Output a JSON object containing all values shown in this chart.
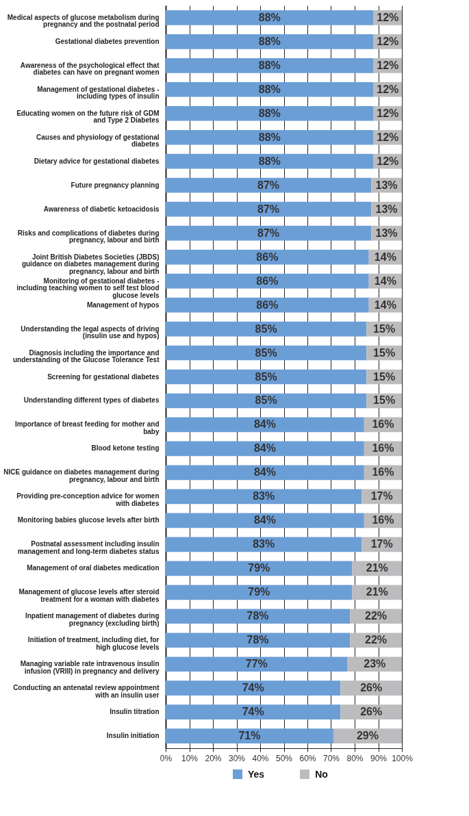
{
  "chart_data": {
    "type": "bar",
    "orientation": "horizontal",
    "stacked": true,
    "categories": [
      "Medical aspects of glucose metabolism during pregnancy and the postnatal period",
      "Gestational diabetes prevention",
      "Awareness of the psychological effect that diabetes can have on pregnant women",
      "Management of gestational diabetes - including types of insulin",
      "Educating women on the future risk of GDM and Type 2 Diabetes",
      "Causes and physiology of gestational diabetes",
      "Dietary advice for gestational diabetes",
      "Future pregnancy planning",
      "Awareness of diabetic ketoacidosis",
      "Risks and complications of diabetes during pregnancy, labour and birth",
      "Joint British Diabetes Societies (JBDS) guidance on diabetes management during pregnancy, labour and birth",
      "Monitoring of gestational diabetes - including teaching women to self test blood glucose levels",
      "Management of hypos",
      "Understanding the legal aspects of driving (insulin use and hypos)",
      "Diagnosis including the importance and understanding of the Glucose Tolerance Test",
      "Screening for gestational diabetes",
      "Understanding different types of diabetes",
      "Importance of breast feeding for mother and baby",
      "Blood ketone testing",
      "NICE guidance on diabetes management during pregnancy, labour and birth",
      "Providing pre-conception advice for women with diabetes",
      "Monitoring babies glucose levels after birth",
      "Postnatal assessment including insulin management and long-term diabetes status",
      "Management of oral diabetes medication",
      "Management of glucose levels after steroid treatment for a woman with diabetes",
      "Inpatient management of diabetes during pregnancy (excluding birth)",
      "Initiation of treatment, including diet, for high glucose levels",
      "Managing variable rate intravenous insulin infusion (VRIII) in pregnancy and delivery",
      "Conducting an antenatal review appointment with an insulin user",
      "Insulin titration",
      "Insulin initiation"
    ],
    "series": [
      {
        "name": "Yes",
        "color": "#6c9ed6",
        "values": [
          88,
          88,
          88,
          88,
          88,
          88,
          88,
          87,
          87,
          87,
          86,
          86,
          86,
          85,
          85,
          85,
          85,
          84,
          84,
          84,
          83,
          84,
          83,
          79,
          79,
          78,
          78,
          77,
          74,
          74,
          71
        ],
        "value_labels": [
          "88%",
          "88%",
          "88%",
          "88%",
          "88%",
          "88%",
          "88%",
          "87%",
          "87%",
          "87%",
          "86%",
          "86%",
          "86%",
          "85%",
          "85%",
          "85%",
          "85%",
          "84%",
          "84%",
          "84%",
          "83%",
          "84%",
          "83%",
          "79%",
          "79%",
          "78%",
          "78%",
          "77%",
          "74%",
          "74%",
          "71%"
        ]
      },
      {
        "name": "No",
        "color": "#bcbcbe",
        "values": [
          12,
          12,
          12,
          12,
          12,
          12,
          12,
          13,
          13,
          13,
          14,
          14,
          14,
          15,
          15,
          15,
          15,
          16,
          16,
          16,
          17,
          16,
          17,
          21,
          21,
          22,
          22,
          23,
          26,
          26,
          29
        ],
        "value_labels": [
          "12%",
          "12%",
          "12%",
          "12%",
          "12%",
          "12%",
          "12%",
          "13%",
          "13%",
          "13%",
          "14%",
          "14%",
          "14%",
          "15%",
          "15%",
          "15%",
          "15%",
          "16%",
          "16%",
          "16%",
          "17%",
          "16%",
          "17%",
          "21%",
          "21%",
          "22%",
          "22%",
          "23%",
          "26%",
          "26%",
          "29%"
        ]
      }
    ],
    "xlim": [
      0,
      100
    ],
    "xticks": [
      {
        "value": 0,
        "label": "0%"
      },
      {
        "value": 10,
        "label": "10%"
      },
      {
        "value": 20,
        "label": "20%"
      },
      {
        "value": 30,
        "label": "30%"
      },
      {
        "value": 40,
        "label": "40%"
      },
      {
        "value": 50,
        "label": "50%"
      },
      {
        "value": 60,
        "label": "60%"
      },
      {
        "value": 70,
        "label": "70%"
      },
      {
        "value": 80,
        "label": "80%"
      },
      {
        "value": 90,
        "label": "90%"
      },
      {
        "value": 100,
        "label": "100%"
      }
    ],
    "grid": "x",
    "legend": "bottom"
  }
}
